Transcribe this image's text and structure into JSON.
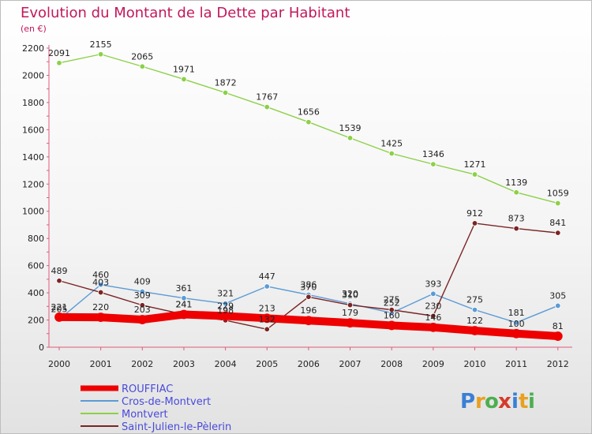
{
  "chart_data": {
    "type": "line",
    "title": "Evolution du Montant de la Dette par Habitant",
    "unit_label": "(en €)",
    "xlabel": "",
    "ylabel": "",
    "x": [
      "2000",
      "2001",
      "2002",
      "2003",
      "2004",
      "2005",
      "2006",
      "2007",
      "2008",
      "2009",
      "2010",
      "2011",
      "2012"
    ],
    "ylim": [
      0,
      2200
    ],
    "yticks": [
      0,
      200,
      400,
      600,
      800,
      1000,
      1200,
      1400,
      1600,
      1800,
      2000,
      2200
    ],
    "grid": false,
    "series": [
      {
        "name": "ROUFFIAC",
        "color": "#ee0000",
        "emphasis": true,
        "values": [
          221,
          220,
          203,
          241,
          229,
          213,
          196,
          179,
          160,
          146,
          122,
          100,
          81
        ],
        "labels": [
          "221",
          "220",
          "203",
          "241",
          "229",
          "213",
          "196",
          "179",
          "160",
          "146",
          "122",
          "100",
          "81"
        ]
      },
      {
        "name": "Cros-de-Montvert",
        "color": "#5b9bd5",
        "emphasis": false,
        "values": [
          205,
          460,
          409,
          361,
          321,
          447,
          386,
          320,
          252,
          393,
          275,
          181,
          305
        ],
        "labels": [
          "205",
          "460",
          "409",
          "361",
          "321",
          "447",
          "386",
          "320",
          "252",
          "393",
          "275",
          "181",
          "305"
        ]
      },
      {
        "name": "Montvert",
        "color": "#8cd048",
        "emphasis": false,
        "values": [
          2091,
          2155,
          2065,
          1971,
          1872,
          1767,
          1656,
          1539,
          1425,
          1346,
          1271,
          1139,
          1059
        ],
        "labels": [
          "2091",
          "2155",
          "2065",
          "1971",
          "1872",
          "1767",
          "1656",
          "1539",
          "1425",
          "1346",
          "1271",
          "1139",
          "1059"
        ]
      },
      {
        "name": "Saint-Julien-le-Pèlerin",
        "color": "#7b2424",
        "emphasis": false,
        "values": [
          489,
          403,
          309,
          241,
          198,
          132,
          370,
          310,
          275,
          230,
          912,
          873,
          841
        ],
        "labels": [
          "489",
          "403",
          "309",
          "241",
          "198",
          "132",
          "370",
          "310",
          "275",
          "230",
          "912",
          "873",
          "841"
        ]
      }
    ],
    "legend": [
      "ROUFFIAC",
      "Cros-de-Montvert",
      "Montvert",
      "Saint-Julien-le-Pèlerin"
    ],
    "legend_position": "bottom-left"
  },
  "branding": {
    "logo_text": "Proxiti"
  }
}
